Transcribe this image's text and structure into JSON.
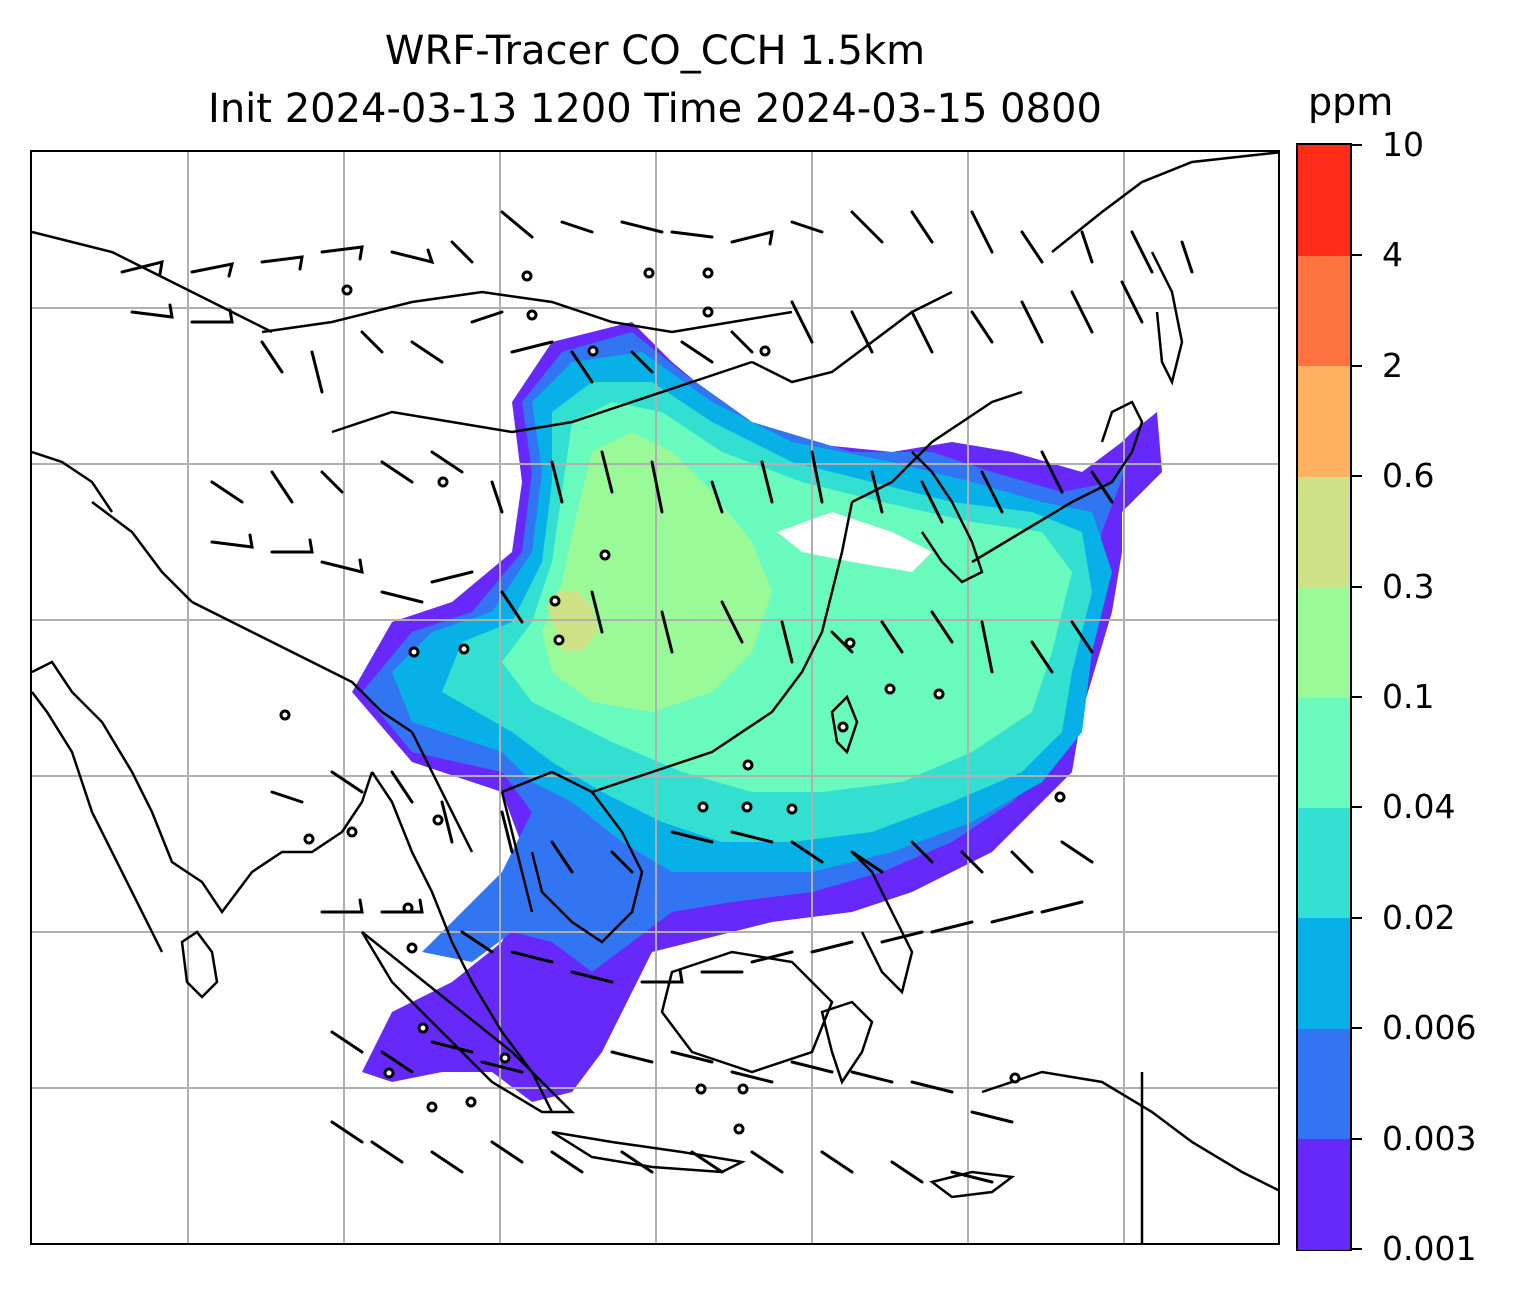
{
  "title": {
    "line1": "WRF-Tracer CO_CCH 1.5km",
    "line2": "Init 2024-03-13 1200 Time 2024-03-15 0800"
  },
  "colorbar": {
    "unit": "ppm",
    "levels": [
      "0.001",
      "0.003",
      "0.006",
      "0.02",
      "0.04",
      "0.1",
      "0.3",
      "0.6",
      "2",
      "4",
      "10"
    ],
    "colors": [
      "#6629fa",
      "#3275f2",
      "#08b0e8",
      "#33dfd1",
      "#68fbbd",
      "#9bfa98",
      "#cee187",
      "#ffb160",
      "#ff7340",
      "#ff2c19"
    ]
  },
  "map": {
    "gridlines": true,
    "coastline_color": "#000000",
    "grid_color": "#b0b0b0",
    "wind_barb_color": "#000000",
    "calm_marker": "open-circle"
  }
}
